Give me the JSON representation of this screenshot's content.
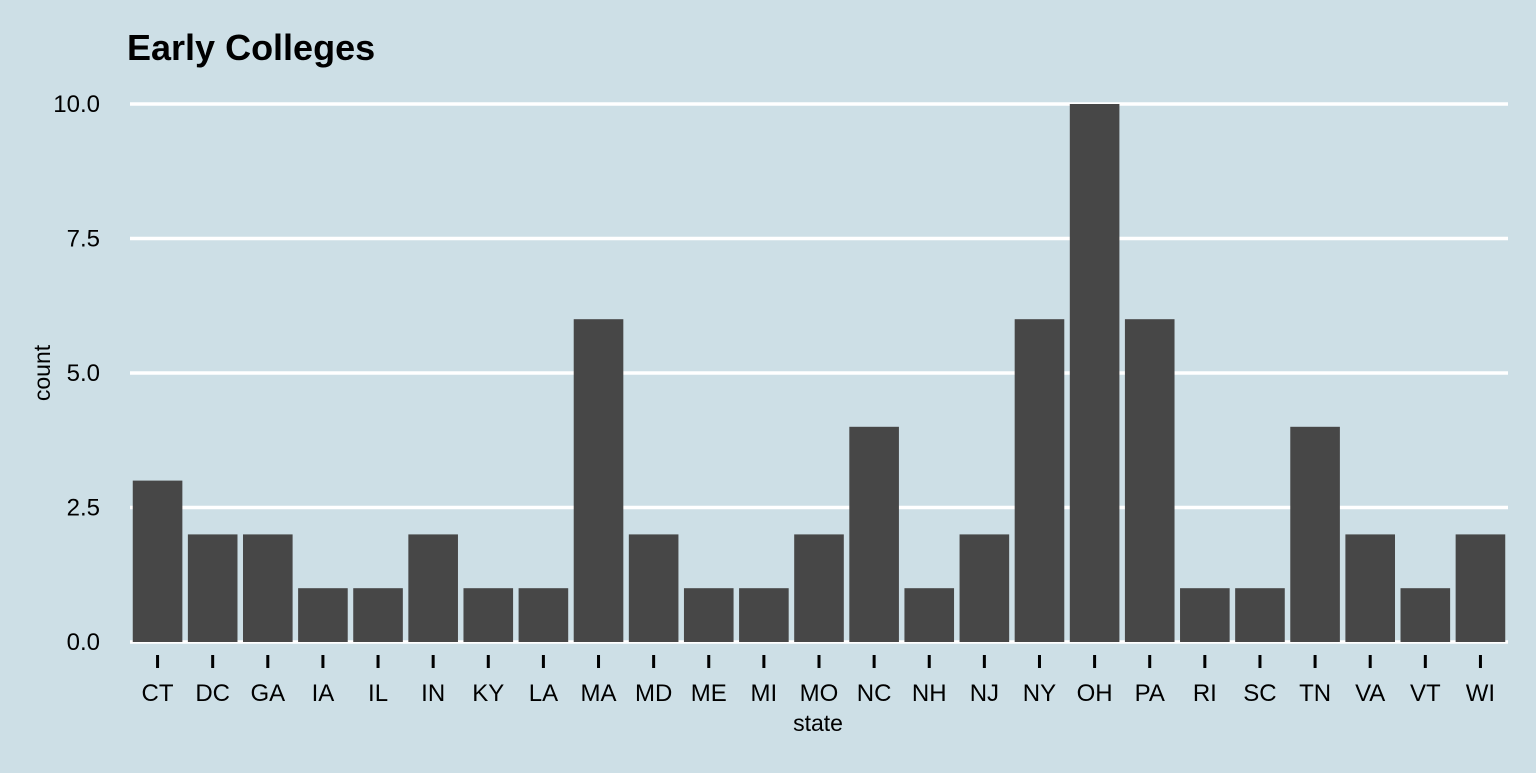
{
  "chart_data": {
    "type": "bar",
    "title": "Early Colleges",
    "xlabel": "state",
    "ylabel": "count",
    "categories": [
      "CT",
      "DC",
      "GA",
      "IA",
      "IL",
      "IN",
      "KY",
      "LA",
      "MA",
      "MD",
      "ME",
      "MI",
      "MO",
      "NC",
      "NH",
      "NJ",
      "NY",
      "OH",
      "PA",
      "RI",
      "SC",
      "TN",
      "VA",
      "VT",
      "WI"
    ],
    "values": [
      3,
      2,
      2,
      1,
      1,
      2,
      1,
      1,
      6,
      2,
      1,
      1,
      2,
      4,
      1,
      2,
      6,
      10,
      6,
      1,
      1,
      4,
      2,
      1,
      2
    ],
    "yticks": [
      "0.0",
      "2.5",
      "5.0",
      "7.5",
      "10.0"
    ],
    "ylim": [
      0,
      10
    ],
    "grid": true,
    "colors": {
      "background": "#cddfe6",
      "bar": "#474747",
      "grid": "#ffffff",
      "text": "#000000"
    }
  }
}
